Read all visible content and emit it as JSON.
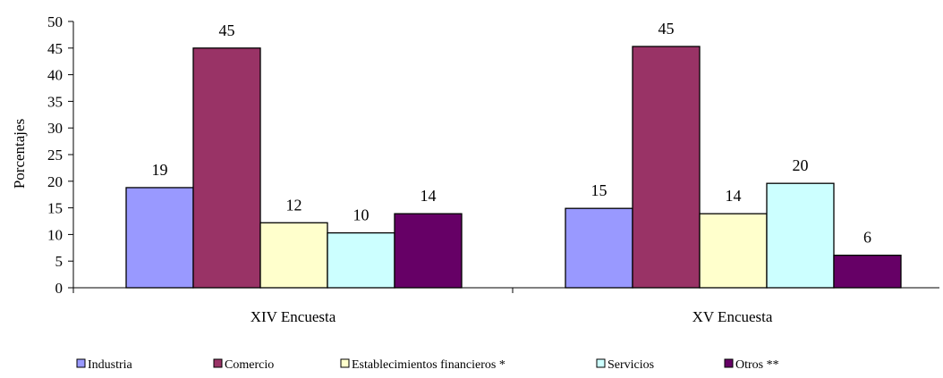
{
  "chart_data": {
    "type": "bar",
    "title": "",
    "xlabel": "",
    "ylabel": "Porcentajes",
    "ylim": [
      0,
      50
    ],
    "yticks": [
      0,
      5,
      10,
      15,
      20,
      25,
      30,
      35,
      40,
      45,
      50
    ],
    "grid": false,
    "legend_position": "bottom",
    "categories": [
      "XIV Encuesta",
      "XV Encuesta"
    ],
    "series": [
      {
        "name": "Industria",
        "values": [
          19,
          15
        ],
        "value_exact": [
          18.8,
          14.9
        ],
        "color": "#9999ff"
      },
      {
        "name": "Comercio",
        "values": [
          45,
          45
        ],
        "value_exact": [
          45.0,
          45.3
        ],
        "color": "#993366"
      },
      {
        "name": "Establecimientos financieros *",
        "values": [
          12,
          14
        ],
        "value_exact": [
          12.2,
          13.9
        ],
        "color": "#ffffcc"
      },
      {
        "name": "Servicios",
        "values": [
          10,
          20
        ],
        "value_exact": [
          10.3,
          19.6
        ],
        "color": "#ccffff"
      },
      {
        "name": "Otros **",
        "values": [
          14,
          6
        ],
        "value_exact": [
          13.9,
          6.1
        ],
        "color": "#660066"
      }
    ]
  }
}
